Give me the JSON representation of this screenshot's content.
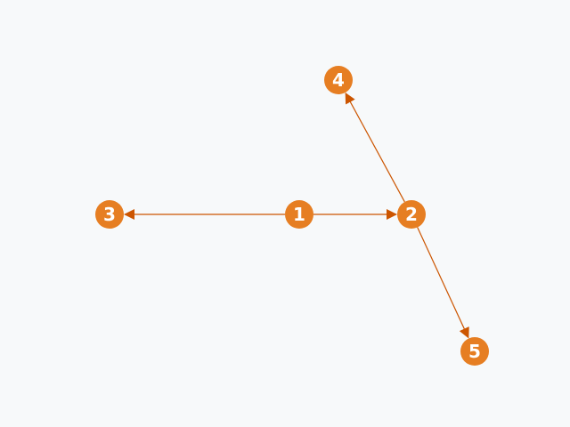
{
  "graph": {
    "nodes": [
      {
        "id": "1",
        "label": "1"
      },
      {
        "id": "2",
        "label": "2"
      },
      {
        "id": "3",
        "label": "3"
      },
      {
        "id": "4",
        "label": "4"
      },
      {
        "id": "5",
        "label": "5"
      }
    ],
    "edges": [
      {
        "from": "1",
        "to": "2"
      },
      {
        "from": "1",
        "to": "3"
      },
      {
        "from": "2",
        "to": "4"
      },
      {
        "from": "2",
        "to": "5"
      }
    ]
  },
  "colors": {
    "background": "#f7f9fa",
    "node_fill": "#e67e22",
    "node_text": "#ffffff",
    "edge": "#cc5500"
  }
}
